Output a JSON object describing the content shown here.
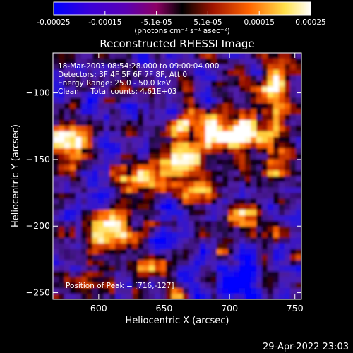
{
  "colorbar": {
    "tick_labels": [
      "-0.00025",
      "-0.00015",
      "-5.1e-05",
      "5.1e-05",
      "0.00015",
      "0.00025"
    ],
    "unit_label": "(photons cm⁻² s⁻¹ asec⁻²)",
    "colormap": [
      "#0000ff",
      "#5a00b4",
      "#8c0064",
      "#000000",
      "#a01400",
      "#ff6400",
      "#ffe14b",
      "#ffffff"
    ]
  },
  "image": {
    "title": "Reconstructed RHESSI Image",
    "annotations": {
      "time_range": "18-Mar-2003 08:54:28.000 to 09:00:04.000",
      "detectors": "Detectors: 3F 4F 5F 6F 7F 8F, Att 0",
      "energy_range": "Energy Range: 25.0 - 50.0 keV",
      "clean_counts": "Clean     Total counts: 4.61E+03",
      "peak_position": "Position of Peak = [716,-127]"
    },
    "x_axis": {
      "label": "Heliocentric X (arcsec)",
      "range": [
        565,
        755
      ],
      "ticks": [
        600,
        650,
        700,
        750
      ],
      "tick_labels": [
        "600",
        "650",
        "700",
        "750"
      ]
    },
    "y_axis": {
      "label": "Heliocentric Y (arcsec)",
      "range": [
        -255,
        -70
      ],
      "ticks": [
        -100,
        -150,
        -200,
        -250
      ],
      "tick_labels": [
        "-100",
        "-150",
        "-200",
        "-250"
      ]
    }
  },
  "footer": {
    "timestamp": "29-Apr-2022 23:03"
  }
}
